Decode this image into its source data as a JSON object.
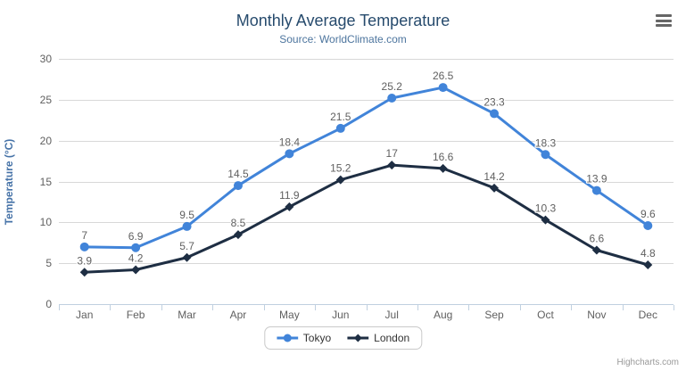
{
  "chart_data": {
    "type": "line",
    "title": "Monthly Average Temperature",
    "subtitle": "Source: WorldClimate.com",
    "xlabel": "",
    "ylabel": "Temperature (°C)",
    "categories": [
      "Jan",
      "Feb",
      "Mar",
      "Apr",
      "May",
      "Jun",
      "Jul",
      "Aug",
      "Sep",
      "Oct",
      "Nov",
      "Dec"
    ],
    "series": [
      {
        "name": "Tokyo",
        "color": "#4184d9",
        "marker": "circle",
        "values": [
          7,
          6.9,
          9.5,
          14.5,
          18.4,
          21.5,
          25.2,
          26.5,
          23.3,
          18.3,
          13.9,
          9.6
        ]
      },
      {
        "name": "London",
        "color": "#1e2e43",
        "marker": "diamond",
        "values": [
          3.9,
          4.2,
          5.7,
          8.5,
          11.9,
          15.2,
          17,
          16.6,
          14.2,
          10.3,
          6.6,
          4.8
        ]
      }
    ],
    "ylim": [
      0,
      30
    ],
    "ytick_step": 5,
    "grid": true,
    "data_labels": true,
    "legend_position": "bottom"
  },
  "credits": {
    "label": "Highcharts.com"
  },
  "export_menu": {
    "icon": "hamburger-menu-icon"
  },
  "colors": {
    "title": "#274b6d",
    "subtitle": "#4d759e",
    "y_axis_title": "#4572a7",
    "axis_label": "#606060",
    "data_label": "#606060",
    "gridline": "#d8d8d8",
    "axis_line": "#c0d0e0",
    "legend_text": "#333333",
    "legend_border": "#c9c9c9",
    "credits_text": "#999999",
    "menu_icon": "#666666",
    "background": "#ffffff"
  }
}
